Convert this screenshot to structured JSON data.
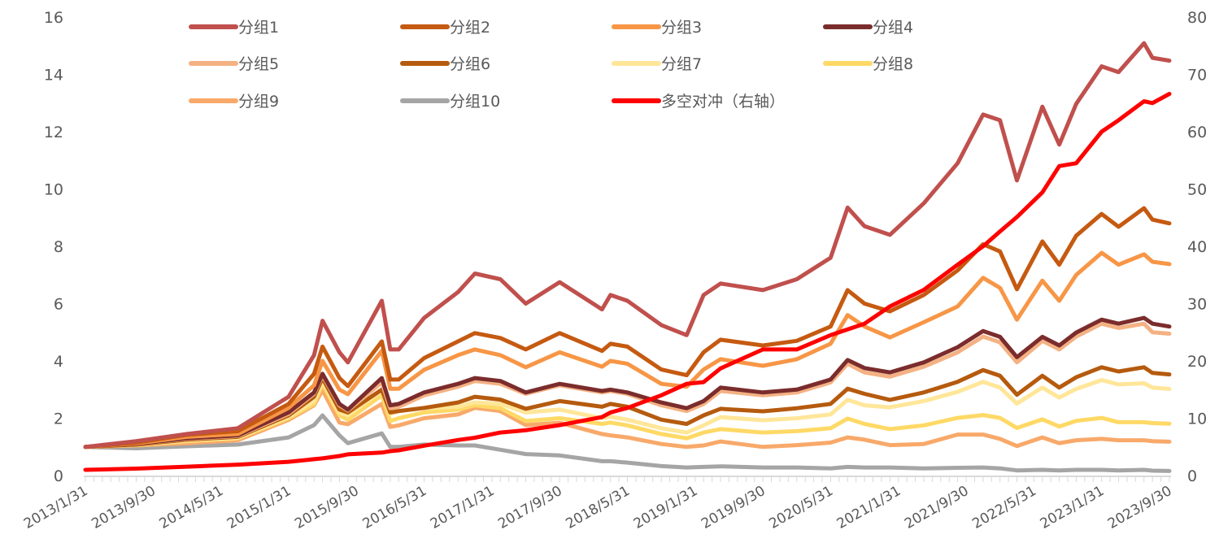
{
  "chart_data": {
    "type": "line",
    "title": "",
    "xlabel": "",
    "ylabel": "",
    "y2label": "",
    "ylim": [
      0,
      16
    ],
    "y2lim": [
      0,
      80
    ],
    "yticks": [
      "0",
      "2",
      "4",
      "6",
      "8",
      "10",
      "12",
      "14",
      "16"
    ],
    "y2ticks": [
      "0",
      "10",
      "20",
      "30",
      "40",
      "50",
      "60",
      "70",
      "80"
    ],
    "xtick_labels": [
      "2013/1/31",
      "2013/9/30",
      "2014/5/31",
      "2015/1/31",
      "2015/9/30",
      "2016/5/31",
      "2017/1/31",
      "2017/9/30",
      "2018/5/31",
      "2019/1/31",
      "2019/9/30",
      "2020/5/31",
      "2021/1/31",
      "2021/9/30",
      "2022/5/31",
      "2023/1/31",
      "2023/9/30"
    ],
    "grid": false,
    "legend_position": "top",
    "x": [
      "2013/1/31",
      "2013/7/31",
      "2014/1/31",
      "2014/7/31",
      "2015/1/31",
      "2015/4/30",
      "2015/5/31",
      "2015/7/31",
      "2015/8/31",
      "2015/12/31",
      "2016/1/31",
      "2016/2/29",
      "2016/5/31",
      "2016/9/30",
      "2016/11/30",
      "2017/2/28",
      "2017/5/31",
      "2017/9/30",
      "2018/2/28",
      "2018/3/31",
      "2018/5/31",
      "2018/9/30",
      "2018/12/31",
      "2019/2/28",
      "2019/4/30",
      "2019/9/30",
      "2020/1/31",
      "2020/5/31",
      "2020/7/31",
      "2020/9/30",
      "2020/12/31",
      "2021/4/30",
      "2021/8/31",
      "2021/11/30",
      "2022/1/31",
      "2022/3/31",
      "2022/6/30",
      "2022/8/31",
      "2022/10/31",
      "2023/1/31",
      "2023/3/31",
      "2023/6/30",
      "2023/7/31",
      "2023/9/30"
    ],
    "series": [
      {
        "name": "分组1",
        "axis": "left",
        "color": "#c0504d",
        "values": [
          1.0,
          1.2,
          1.45,
          1.65,
          2.75,
          4.2,
          5.4,
          4.3,
          3.95,
          6.1,
          4.4,
          4.4,
          5.5,
          6.4,
          7.05,
          6.85,
          6.0,
          6.75,
          5.8,
          6.3,
          6.1,
          5.25,
          4.9,
          6.3,
          6.7,
          6.47,
          6.85,
          7.6,
          9.35,
          8.7,
          8.4,
          9.5,
          10.9,
          12.6,
          12.4,
          10.3,
          12.87,
          11.55,
          12.97,
          14.28,
          14.08,
          15.09,
          14.58,
          14.48
        ]
      },
      {
        "name": "分组2",
        "axis": "left",
        "color": "#c55a11",
        "values": [
          1.0,
          1.15,
          1.42,
          1.55,
          2.5,
          3.55,
          4.5,
          3.4,
          3.12,
          4.68,
          3.35,
          3.35,
          4.1,
          4.68,
          4.97,
          4.8,
          4.4,
          4.97,
          4.35,
          4.6,
          4.5,
          3.7,
          3.5,
          4.3,
          4.74,
          4.54,
          4.7,
          5.2,
          6.47,
          6.0,
          5.73,
          6.3,
          7.16,
          8.07,
          7.82,
          6.5,
          8.17,
          7.36,
          8.37,
          9.13,
          8.68,
          9.33,
          8.93,
          8.8
        ]
      },
      {
        "name": "分组3",
        "axis": "left",
        "color": "#f79646",
        "values": [
          1.0,
          1.12,
          1.35,
          1.45,
          2.36,
          3.15,
          4.0,
          3.0,
          2.84,
          4.35,
          3.03,
          3.03,
          3.69,
          4.2,
          4.4,
          4.2,
          3.78,
          4.3,
          3.8,
          4.0,
          3.9,
          3.2,
          3.1,
          3.7,
          4.06,
          3.83,
          4.06,
          4.6,
          5.6,
          5.2,
          4.82,
          5.35,
          5.9,
          6.9,
          6.55,
          5.44,
          6.8,
          6.1,
          7.0,
          7.77,
          7.36,
          7.72,
          7.46,
          7.38
        ]
      },
      {
        "name": "分组4",
        "axis": "left",
        "color": "#7b2c2c",
        "values": [
          1.0,
          1.1,
          1.3,
          1.4,
          2.2,
          2.9,
          3.55,
          2.5,
          2.3,
          3.4,
          2.45,
          2.5,
          2.9,
          3.2,
          3.4,
          3.3,
          2.9,
          3.2,
          2.95,
          3.0,
          2.9,
          2.55,
          2.35,
          2.6,
          3.07,
          2.9,
          3.0,
          3.35,
          4.03,
          3.75,
          3.6,
          3.95,
          4.48,
          5.04,
          4.84,
          4.13,
          4.84,
          4.54,
          4.99,
          5.44,
          5.3,
          5.5,
          5.3,
          5.2
        ]
      },
      {
        "name": "分组5",
        "axis": "left",
        "color": "#f4b183",
        "values": [
          1.0,
          1.1,
          1.28,
          1.38,
          2.15,
          2.85,
          3.5,
          2.45,
          2.27,
          3.25,
          2.35,
          2.4,
          2.8,
          3.1,
          3.3,
          3.2,
          2.85,
          3.15,
          2.9,
          2.95,
          2.85,
          2.45,
          2.25,
          2.5,
          2.95,
          2.8,
          2.9,
          3.25,
          3.9,
          3.6,
          3.45,
          3.8,
          4.3,
          4.85,
          4.65,
          3.95,
          4.7,
          4.4,
          4.85,
          5.3,
          5.15,
          5.3,
          5.0,
          4.95
        ]
      },
      {
        "name": "分组6",
        "axis": "left",
        "color": "#b55a0e",
        "values": [
          1.0,
          1.08,
          1.25,
          1.35,
          2.1,
          2.75,
          3.4,
          2.3,
          2.2,
          3.0,
          2.2,
          2.25,
          2.36,
          2.55,
          2.75,
          2.65,
          2.33,
          2.6,
          2.4,
          2.5,
          2.4,
          1.95,
          1.8,
          2.1,
          2.33,
          2.24,
          2.35,
          2.5,
          3.03,
          2.85,
          2.64,
          2.9,
          3.27,
          3.68,
          3.48,
          2.82,
          3.48,
          3.07,
          3.43,
          3.78,
          3.63,
          3.78,
          3.58,
          3.53
        ]
      },
      {
        "name": "分组7",
        "axis": "left",
        "color": "#ffe699",
        "values": [
          1.0,
          1.08,
          1.22,
          1.32,
          2.05,
          2.6,
          3.3,
          2.2,
          2.1,
          2.95,
          2.15,
          2.25,
          2.35,
          2.4,
          2.55,
          2.5,
          2.2,
          2.3,
          2.0,
          2.05,
          1.95,
          1.65,
          1.5,
          1.75,
          2.04,
          1.93,
          2.0,
          2.13,
          2.64,
          2.45,
          2.38,
          2.6,
          2.92,
          3.27,
          3.07,
          2.51,
          3.07,
          2.72,
          3.02,
          3.33,
          3.18,
          3.22,
          3.07,
          3.02
        ]
      },
      {
        "name": "分组8",
        "axis": "left",
        "color": "#ffd966",
        "values": [
          1.0,
          1.06,
          1.2,
          1.3,
          2.0,
          2.5,
          3.2,
          2.1,
          1.95,
          2.8,
          1.9,
          2.0,
          2.2,
          2.3,
          2.45,
          2.35,
          1.9,
          2.0,
          1.8,
          1.85,
          1.75,
          1.45,
          1.3,
          1.5,
          1.62,
          1.5,
          1.55,
          1.65,
          1.99,
          1.8,
          1.62,
          1.75,
          2.01,
          2.11,
          2.01,
          1.66,
          1.96,
          1.71,
          1.91,
          2.01,
          1.86,
          1.86,
          1.83,
          1.81
        ]
      },
      {
        "name": "分组9",
        "axis": "left",
        "color": "#f8a96a",
        "values": [
          1.0,
          1.05,
          1.13,
          1.23,
          1.94,
          2.45,
          2.98,
          1.85,
          1.79,
          2.5,
          1.7,
          1.75,
          2.0,
          2.13,
          2.36,
          2.25,
          1.76,
          1.84,
          1.45,
          1.4,
          1.33,
          1.1,
          1.0,
          1.05,
          1.19,
          1.0,
          1.06,
          1.15,
          1.33,
          1.25,
          1.06,
          1.1,
          1.43,
          1.43,
          1.28,
          1.03,
          1.33,
          1.13,
          1.23,
          1.28,
          1.23,
          1.23,
          1.2,
          1.18
        ]
      },
      {
        "name": "分组10",
        "axis": "left",
        "color": "#a5a5a5",
        "values": [
          1.0,
          0.95,
          1.02,
          1.08,
          1.33,
          1.76,
          2.1,
          1.4,
          1.13,
          1.47,
          1.0,
          1.0,
          1.08,
          1.05,
          1.05,
          0.9,
          0.75,
          0.7,
          0.5,
          0.5,
          0.45,
          0.33,
          0.28,
          0.3,
          0.32,
          0.28,
          0.28,
          0.25,
          0.3,
          0.28,
          0.28,
          0.25,
          0.27,
          0.28,
          0.25,
          0.18,
          0.2,
          0.18,
          0.2,
          0.2,
          0.18,
          0.2,
          0.17,
          0.16
        ]
      },
      {
        "name": "多空对冲（右轴）",
        "axis": "right",
        "color": "#ff0000",
        "values": [
          1.0,
          1.2,
          1.55,
          1.9,
          2.4,
          2.85,
          3.0,
          3.4,
          3.7,
          4.0,
          4.25,
          4.4,
          5.2,
          6.2,
          6.6,
          7.5,
          7.9,
          8.8,
          10.2,
          11.0,
          11.8,
          14.0,
          16.0,
          16.3,
          18.7,
          22.0,
          22.0,
          24.5,
          25.5,
          26.5,
          29.5,
          32.4,
          36.8,
          40.0,
          42.6,
          45.1,
          49.4,
          54.0,
          54.5,
          60.0,
          62.0,
          65.3,
          65.0,
          66.6
        ]
      }
    ]
  }
}
